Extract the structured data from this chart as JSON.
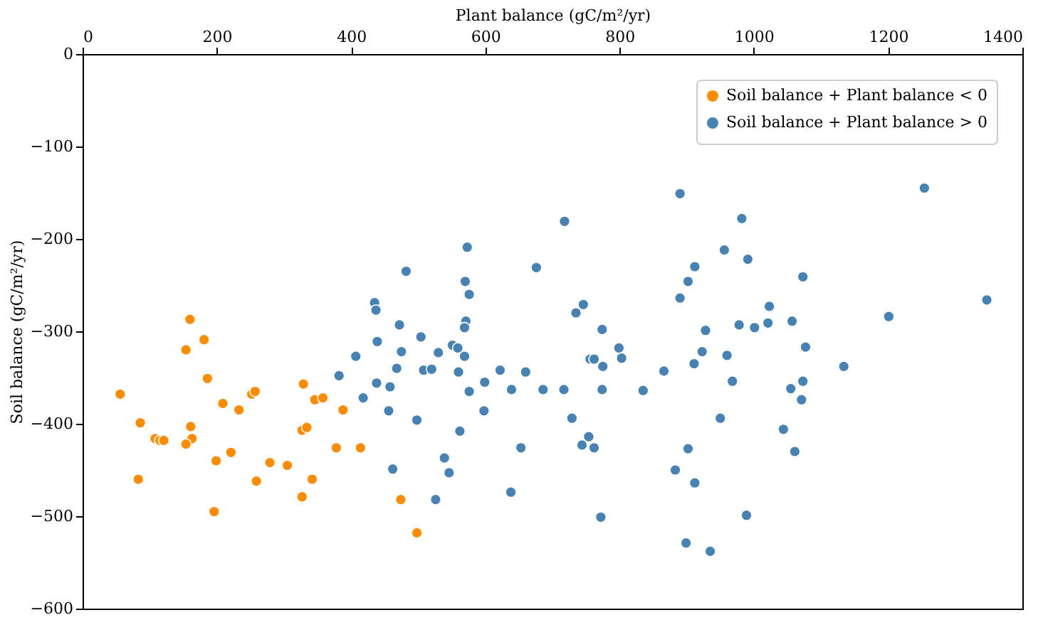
{
  "chart_data": {
    "type": "scatter",
    "xlabel": "Plant balance (gC/m²/yr)",
    "ylabel": "Soil balance (gC/m²/yr)",
    "xlim": [
      0,
      1400
    ],
    "xticks": [
      0,
      200,
      400,
      600,
      800,
      1000,
      1200,
      1400
    ],
    "ylim": [
      -600,
      0
    ],
    "yticks": [
      -600,
      -500,
      -400,
      -300,
      -200,
      -100,
      0
    ],
    "grid": false,
    "legend": "top right",
    "marker": "circle",
    "series": [
      {
        "name": "Soil balance + Plant balance < 0",
        "color": "#ff8c00",
        "x": [
          56,
          86,
          83,
          108,
          115,
          121,
          154,
          160,
          181,
          186,
          161,
          163,
          154,
          209,
          233,
          199,
          221,
          196,
          252,
          257,
          279,
          259,
          305,
          329,
          346,
          358,
          327,
          334,
          327,
          342,
          378,
          388,
          414,
          474,
          498
        ],
        "values": [
          -368,
          -399,
          -460,
          -416,
          -418,
          -418,
          -320,
          -287,
          -309,
          -351,
          -403,
          -416,
          -422,
          -378,
          -385,
          -440,
          -431,
          -495,
          -368,
          -365,
          -442,
          -462,
          -445,
          -357,
          -374,
          -372,
          -407,
          -404,
          -479,
          -460,
          -426,
          -385,
          -426,
          -482,
          -518
        ]
      },
      {
        "name": "Soil balance + Plant balance > 0",
        "color": "#4682b4",
        "x": [
          407,
          382,
          418,
          573,
          482,
          676,
          570,
          576,
          435,
          437,
          746,
          735,
          571,
          569,
          472,
          774,
          504,
          439,
          551,
          559,
          475,
          530,
          569,
          799,
          803,
          756,
          762,
          468,
          508,
          520,
          560,
          622,
          660,
          775,
          438,
          458,
          576,
          599,
          639,
          686,
          717,
          774,
          456,
          498,
          598,
          729,
          562,
          754,
          744,
          762,
          653,
          462,
          539,
          546,
          526,
          638,
          772,
          718,
          890,
          1254,
          982,
          956,
          991,
          912,
          902,
          1073,
          890,
          1347,
          1023,
          1201,
          928,
          978,
          1001,
          1021,
          1057,
          923,
          911,
          960,
          1077,
          866,
          835,
          968,
          1055,
          1073,
          1071,
          1134,
          950,
          1044,
          902,
          1061,
          883,
          912,
          989,
          899,
          935
        ],
        "values": [
          -327,
          -348,
          -372,
          -209,
          -235,
          -231,
          -246,
          -260,
          -269,
          -277,
          -271,
          -280,
          -289,
          -296,
          -293,
          -298,
          -306,
          -311,
          -315,
          -318,
          -322,
          -323,
          -327,
          -318,
          -329,
          -330,
          -330,
          -340,
          -342,
          -341,
          -344,
          -342,
          -344,
          -338,
          -356,
          -360,
          -365,
          -355,
          -363,
          -363,
          -363,
          -363,
          -386,
          -396,
          -386,
          -394,
          -408,
          -414,
          -423,
          -426,
          -426,
          -449,
          -437,
          -453,
          -482,
          -474,
          -501,
          -181,
          -151,
          -145,
          -178,
          -212,
          -222,
          -230,
          -246,
          -241,
          -264,
          -266,
          -273,
          -284,
          -299,
          -293,
          -296,
          -291,
          -289,
          -322,
          -335,
          -326,
          -317,
          -343,
          -364,
          -354,
          -362,
          -354,
          -374,
          -338,
          -394,
          -406,
          -427,
          -430,
          -450,
          -464,
          -499,
          -529,
          -538
        ]
      }
    ]
  }
}
